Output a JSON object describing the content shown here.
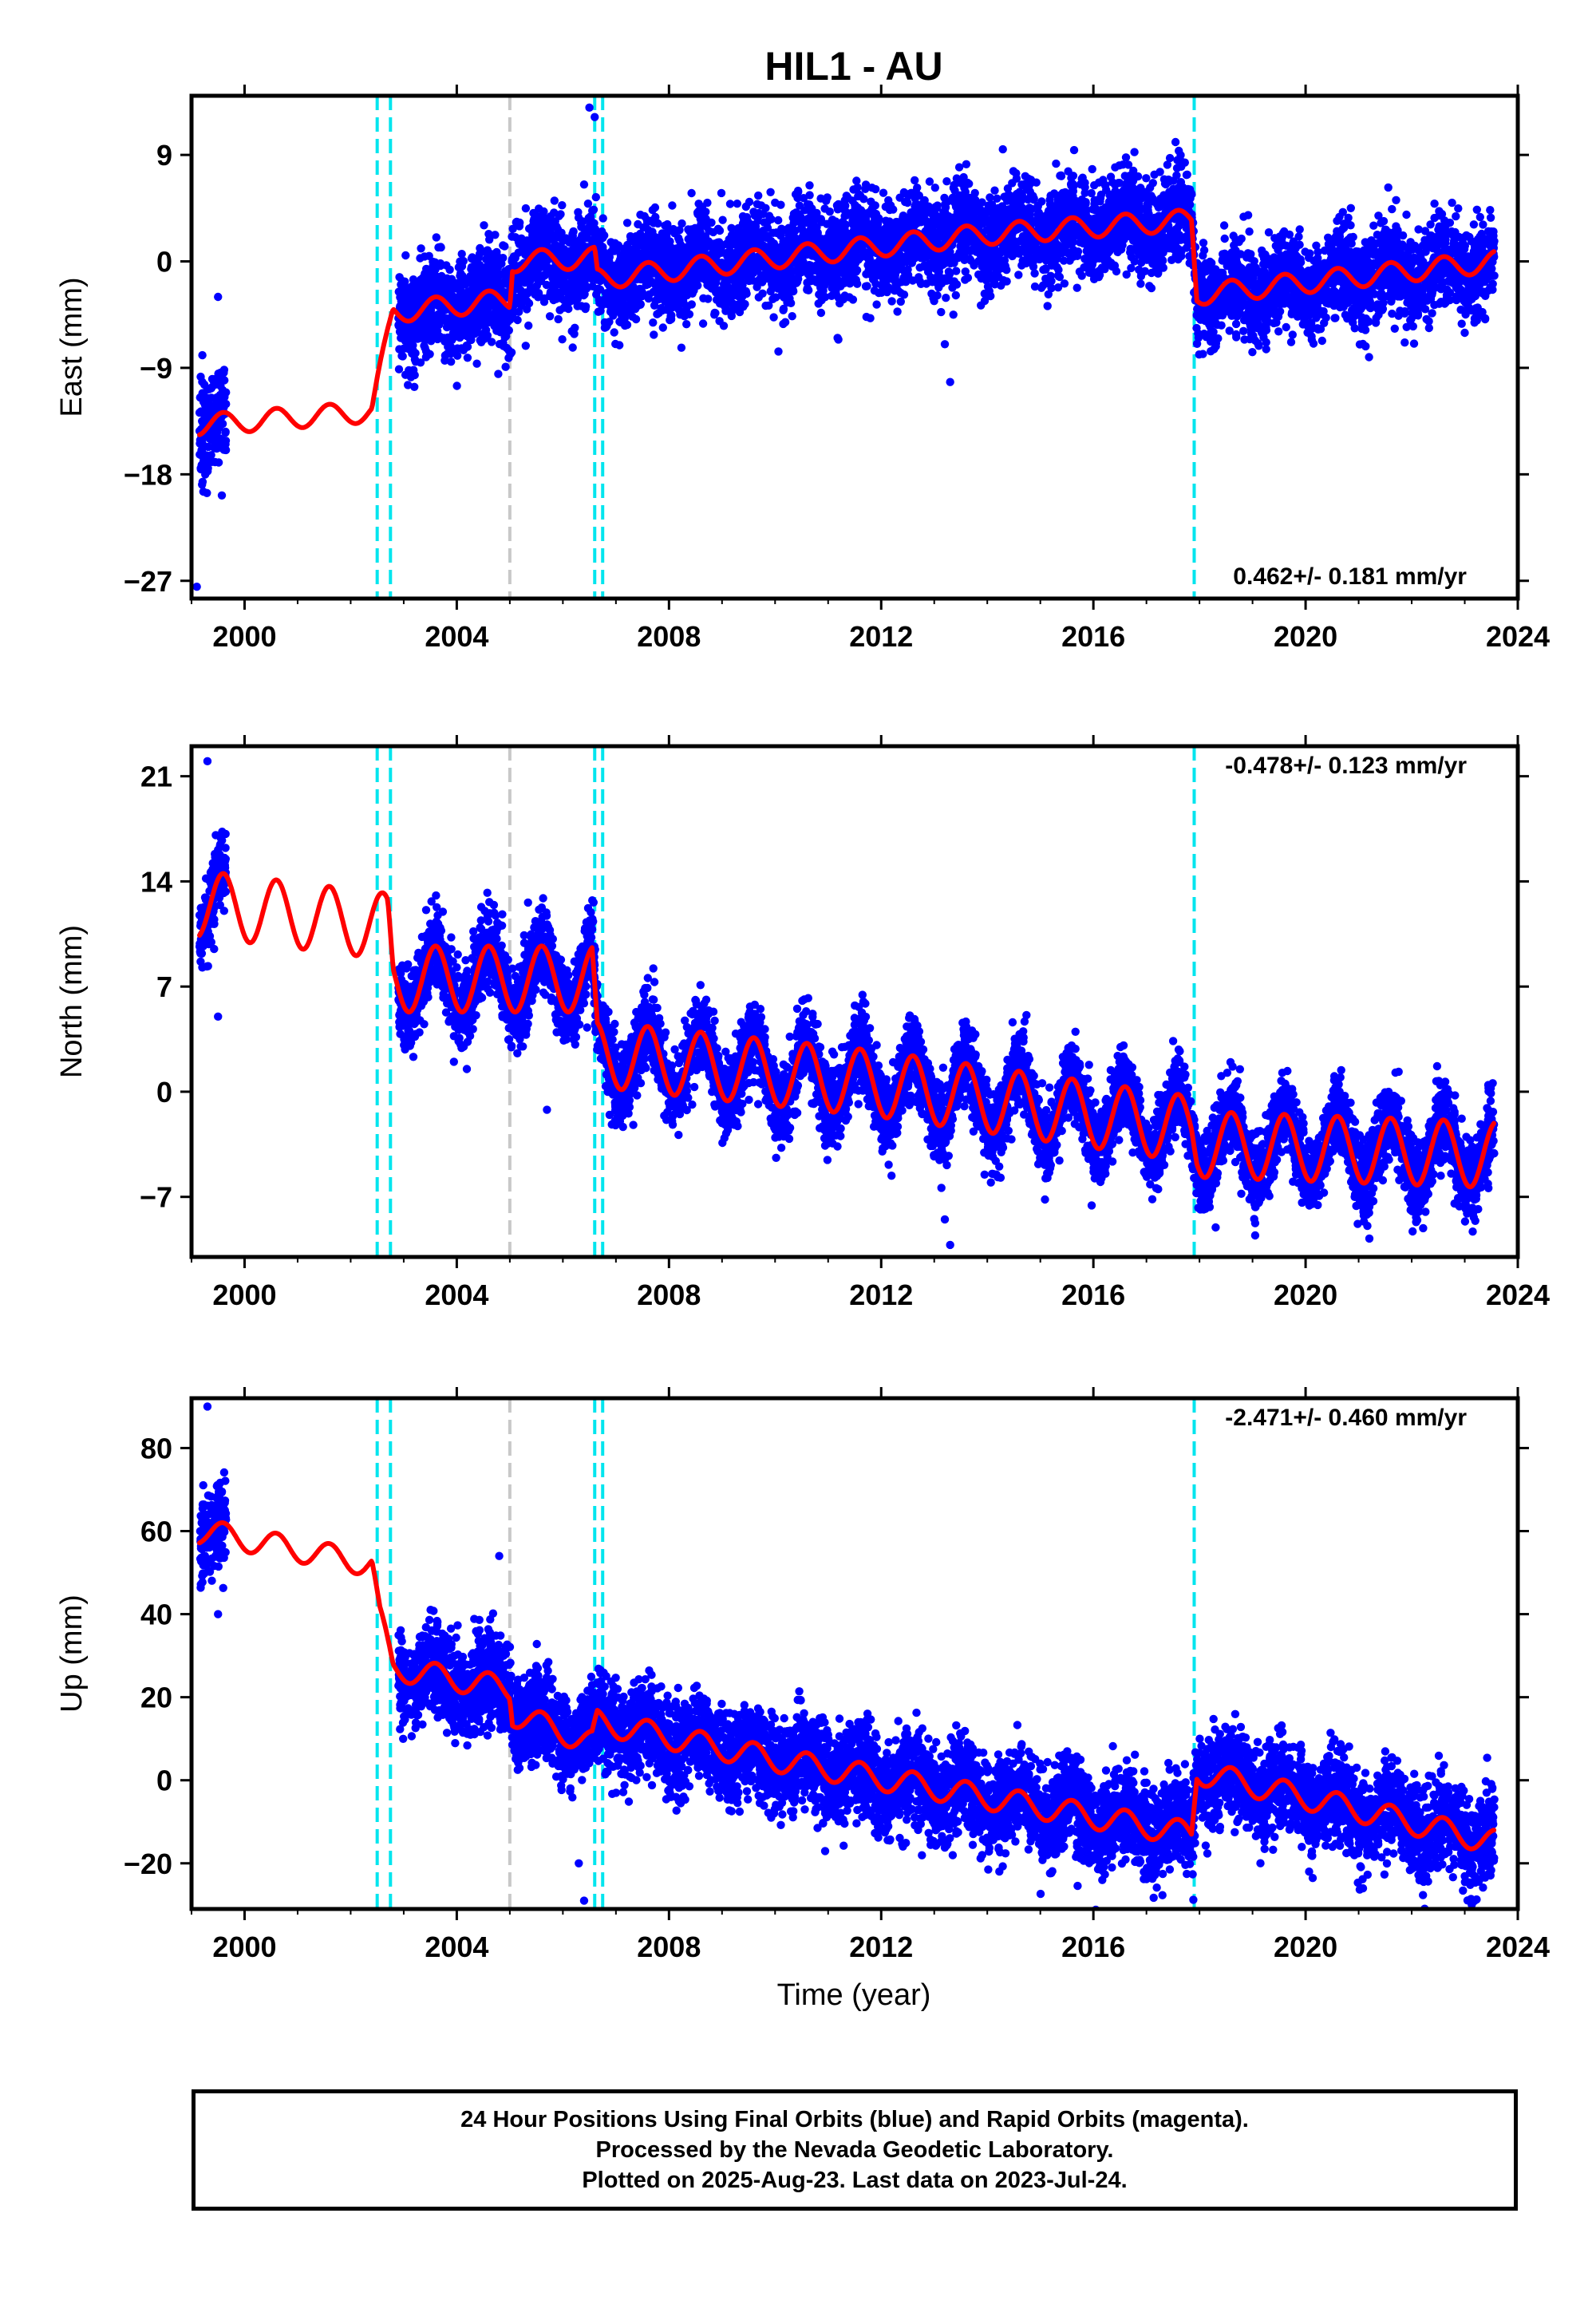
{
  "figure": {
    "title": "HIL1 - AU",
    "xlabel": "Time (year)",
    "caption": [
      "24 Hour Positions Using Final Orbits (blue) and Rapid Orbits (magenta).",
      "Processed by the Nevada Geodetic Laboratory.",
      "Plotted on 2025-Aug-23. Last data on 2023-Jul-24."
    ]
  },
  "colors": {
    "final_orbits": "#0000ff",
    "model_fit": "#ff0000",
    "equipment_change": "#00e5ee",
    "other_event": "#c8c8c8",
    "frame": "#000000"
  },
  "chart_data": [
    {
      "type": "scatter",
      "component": "East",
      "ylabel": "East (mm)",
      "rate_label": "0.462+/- 0.181 mm/yr",
      "rate_position": "bottom-right",
      "xlim": [
        1999.0,
        2024.0
      ],
      "ylim": [
        -28.5,
        14.0
      ],
      "xticks": [
        2000,
        2004,
        2008,
        2012,
        2016,
        2020,
        2024
      ],
      "yticks": [
        9,
        0,
        -9,
        -18,
        -27
      ],
      "grid": false,
      "offsets": [
        {
          "t": 2002.5,
          "type": "equipment",
          "step": 3.5
        },
        {
          "t": 2002.75,
          "type": "equipment",
          "step": 5.5
        },
        {
          "t": 2005.0,
          "type": "other",
          "step": 3.5
        },
        {
          "t": 2006.6,
          "type": "equipment",
          "step": -2.0
        },
        {
          "t": 2006.75,
          "type": "equipment",
          "step": 0.0
        },
        {
          "t": 2017.9,
          "type": "equipment",
          "step": -6.5
        }
      ],
      "model_anchors": [
        [
          1999.2,
          -13.8
        ],
        [
          2002.4,
          -12.7
        ],
        [
          2002.55,
          -9.5
        ],
        [
          2002.8,
          -4.3
        ],
        [
          2005.0,
          -3.2
        ],
        [
          2005.05,
          0.0
        ],
        [
          2006.6,
          0.3
        ],
        [
          2006.65,
          -1.5
        ],
        [
          2010.0,
          0.3
        ],
        [
          2014.0,
          2.3
        ],
        [
          2017.85,
          3.5
        ],
        [
          2017.95,
          -2.8
        ],
        [
          2023.6,
          0.0
        ]
      ],
      "seasonal_amplitude": 0.9,
      "scatter_noise": 2.0,
      "outliers": [
        [
          2006.5,
          13.0
        ],
        [
          2006.6,
          12.2
        ],
        [
          2006.4,
          6.5
        ],
        [
          2013.3,
          -10.2
        ],
        [
          2013.2,
          -7.0
        ],
        [
          1999.1,
          -27.5
        ],
        [
          1999.5,
          -3.0
        ]
      ],
      "data_range": [
        1999.15,
        2023.56
      ]
    },
    {
      "type": "scatter",
      "component": "North",
      "ylabel": "North (mm)",
      "rate_label": "-0.478+/- 0.123 mm/yr",
      "rate_position": "top-right",
      "xlim": [
        1999.0,
        2024.0
      ],
      "ylim": [
        -11.0,
        23.0
      ],
      "xticks": [
        2000,
        2004,
        2008,
        2012,
        2016,
        2020,
        2024
      ],
      "yticks": [
        21,
        14,
        7,
        0,
        -7
      ],
      "grid": false,
      "offsets": [
        {
          "t": 2002.5,
          "type": "equipment",
          "step": 0.0
        },
        {
          "t": 2002.75,
          "type": "equipment",
          "step": -3.5
        },
        {
          "t": 2005.0,
          "type": "other",
          "step": 0.0
        },
        {
          "t": 2006.6,
          "type": "equipment",
          "step": -4.5
        },
        {
          "t": 2006.75,
          "type": "equipment",
          "step": 0.0
        },
        {
          "t": 2017.9,
          "type": "equipment",
          "step": -1.0
        }
      ],
      "model_anchors": [
        [
          1999.2,
          12.5
        ],
        [
          2002.7,
          11.0
        ],
        [
          2002.8,
          7.5
        ],
        [
          2006.55,
          7.5
        ],
        [
          2006.65,
          2.5
        ],
        [
          2012.0,
          0.5
        ],
        [
          2017.85,
          -2.5
        ],
        [
          2017.95,
          -3.5
        ],
        [
          2023.6,
          -4.2
        ]
      ],
      "seasonal_amplitude": 2.2,
      "scatter_noise": 1.3,
      "outliers": [
        [
          2013.3,
          -10.2
        ],
        [
          2013.2,
          -8.5
        ],
        [
          1999.3,
          22.0
        ],
        [
          2005.7,
          -1.2
        ],
        [
          1999.5,
          5.0
        ]
      ],
      "data_range": [
        1999.15,
        2023.56
      ]
    },
    {
      "type": "scatter",
      "component": "Up",
      "ylabel": "Up (mm)",
      "rate_label": "-2.471+/- 0.460 mm/yr",
      "rate_position": "top-right",
      "xlim": [
        1999.0,
        2024.0
      ],
      "ylim": [
        -31.0,
        92.0
      ],
      "xticks": [
        2000,
        2004,
        2008,
        2012,
        2016,
        2020,
        2024
      ],
      "yticks": [
        80,
        60,
        40,
        20,
        0,
        -20
      ],
      "grid": false,
      "offsets": [
        {
          "t": 2002.5,
          "type": "equipment",
          "step": -12.0
        },
        {
          "t": 2002.75,
          "type": "equipment",
          "step": -12.0
        },
        {
          "t": 2005.0,
          "type": "other",
          "step": -6.0
        },
        {
          "t": 2006.6,
          "type": "equipment",
          "step": 5.0
        },
        {
          "t": 2006.75,
          "type": "equipment",
          "step": 0.0
        },
        {
          "t": 2017.9,
          "type": "equipment",
          "step": 16.0
        }
      ],
      "model_anchors": [
        [
          1999.2,
          60.0
        ],
        [
          2002.4,
          52.0
        ],
        [
          2002.55,
          39.0
        ],
        [
          2002.8,
          27.0
        ],
        [
          2005.0,
          22.0
        ],
        [
          2005.05,
          16.0
        ],
        [
          2006.55,
          9.0
        ],
        [
          2006.65,
          14.0
        ],
        [
          2010.0,
          5.0
        ],
        [
          2017.85,
          -13.0
        ],
        [
          2017.95,
          2.0
        ],
        [
          2023.6,
          -15.0
        ]
      ],
      "seasonal_amplitude": 3.0,
      "scatter_noise": 5.5,
      "outliers": [
        [
          2006.4,
          -29.0
        ],
        [
          2006.3,
          -20.0
        ],
        [
          1999.3,
          90.0
        ],
        [
          2004.8,
          54.0
        ],
        [
          1999.5,
          40.0
        ]
      ],
      "data_range": [
        1999.15,
        2023.56
      ]
    }
  ]
}
